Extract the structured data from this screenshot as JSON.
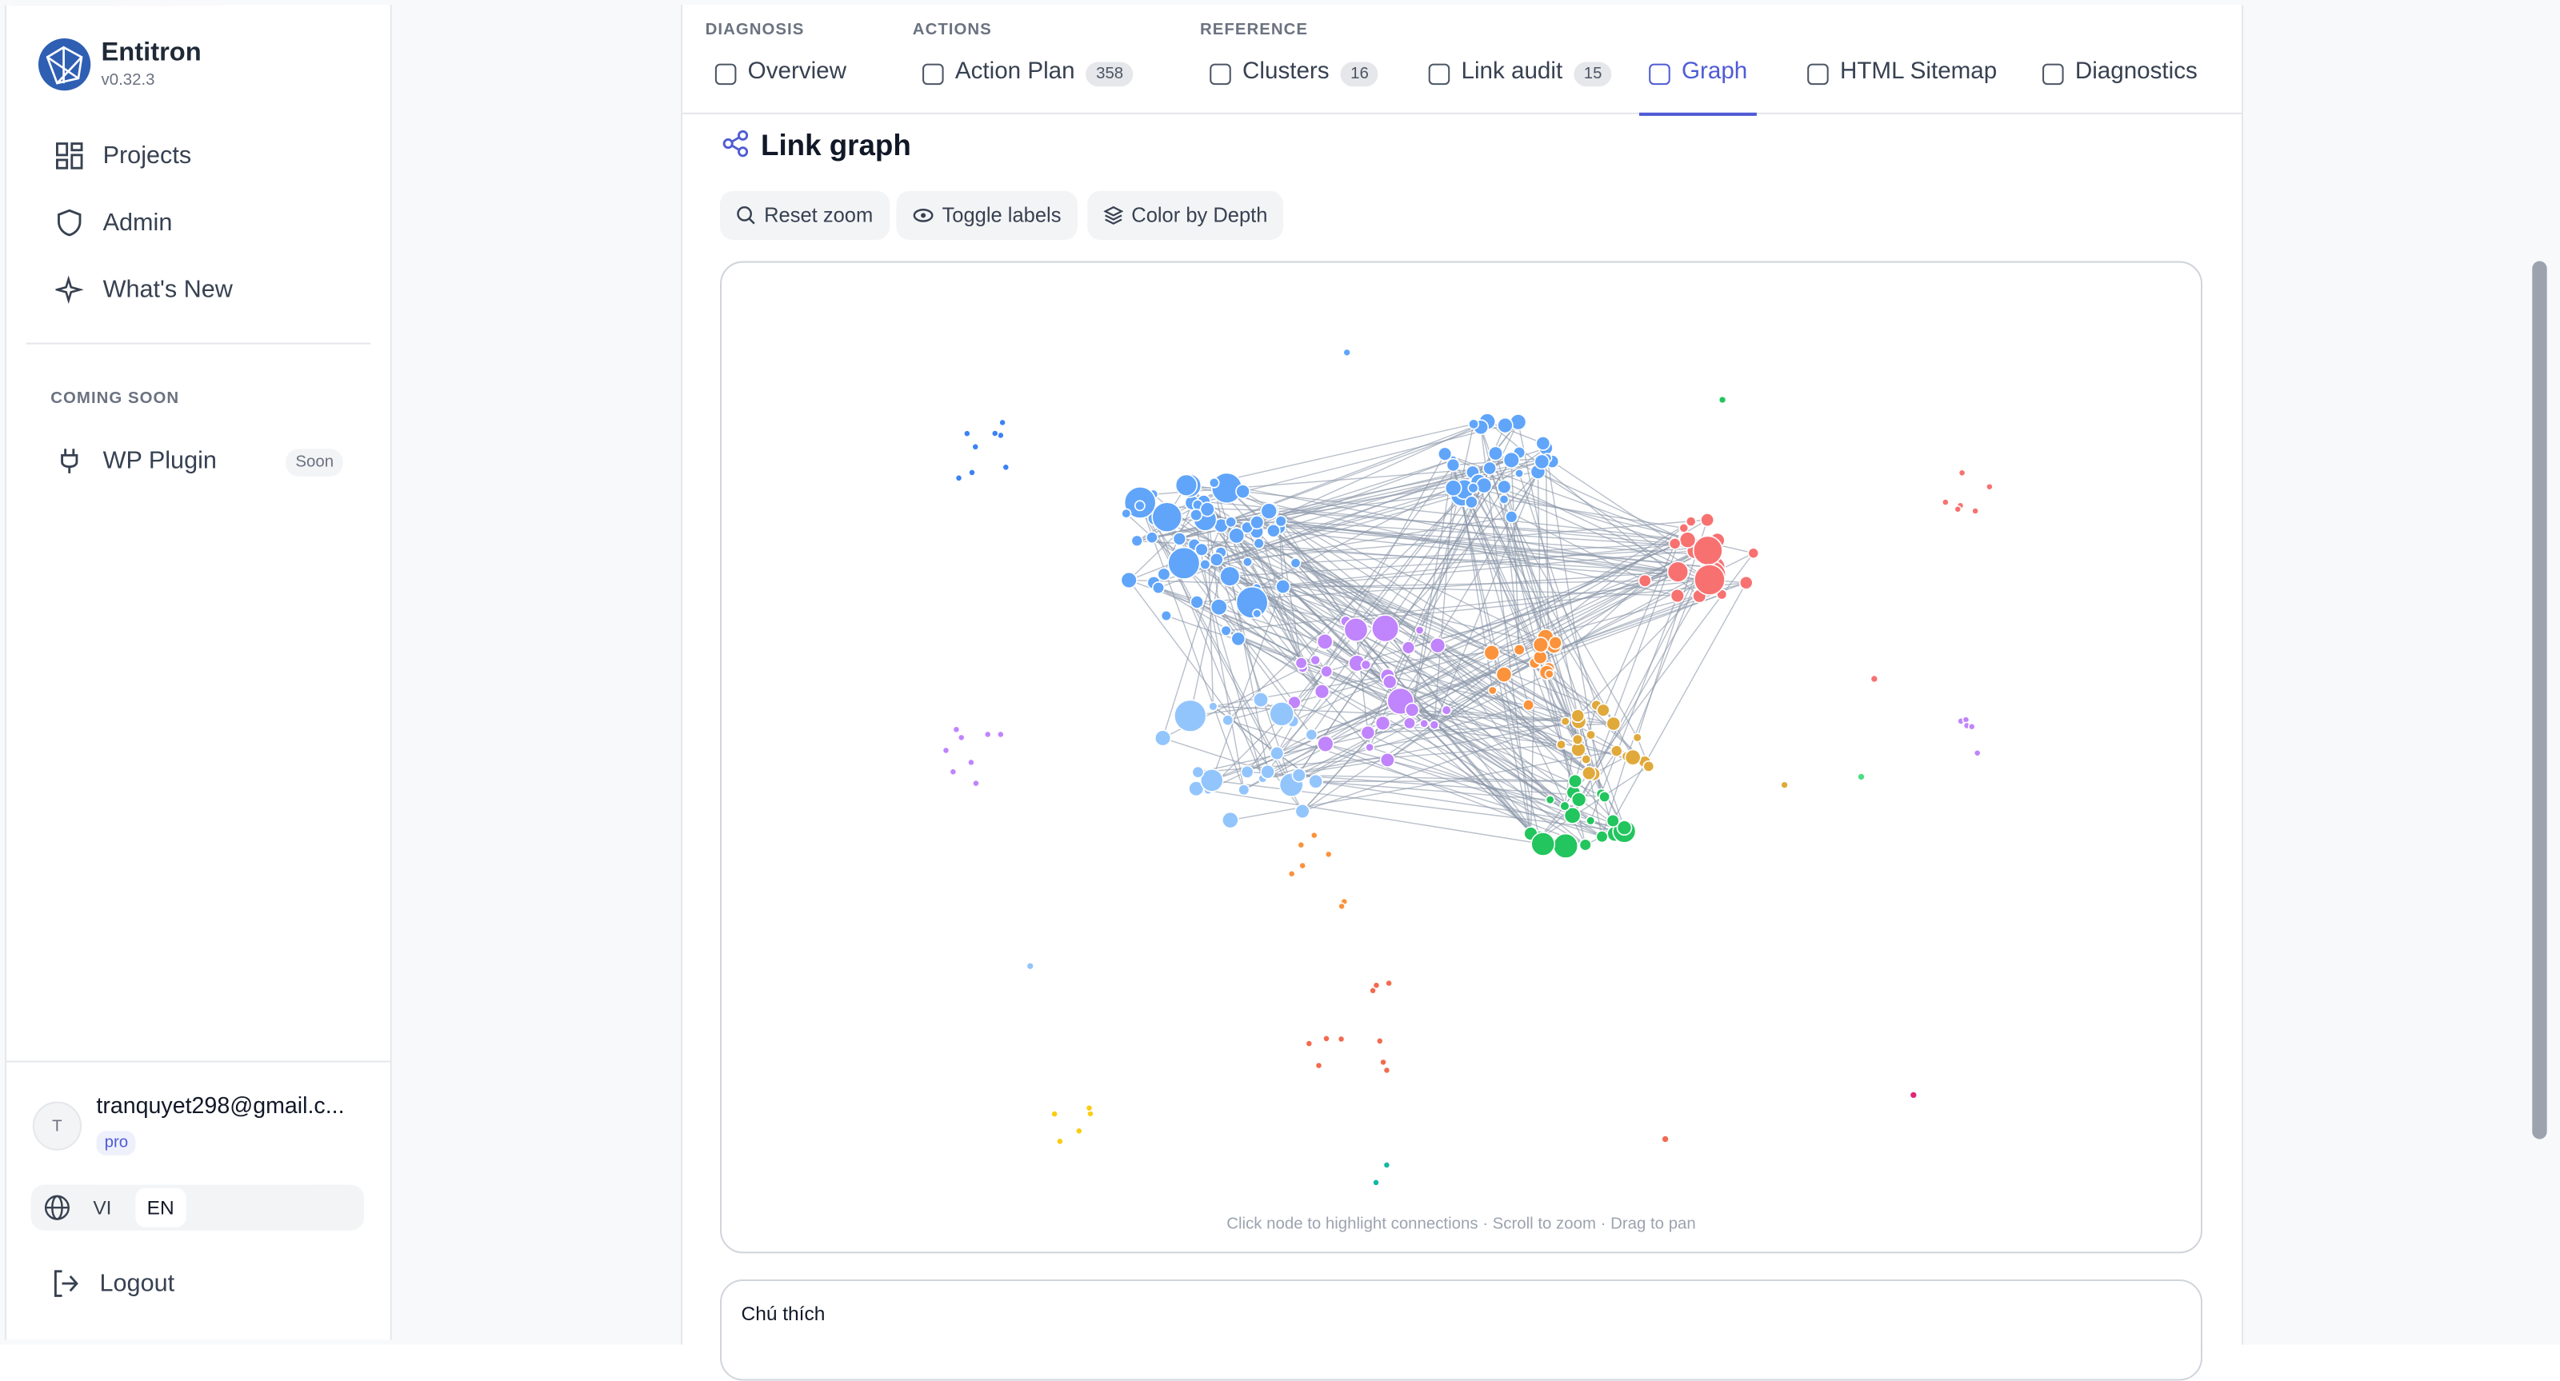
{
  "sidebar": {
    "app_name": "Entitron",
    "version": "v0.32.3",
    "nav": [
      "Projects",
      "Admin",
      "What's New"
    ],
    "coming_soon_heading": "COMING SOON",
    "coming_soon_items": [
      {
        "label": "WP Plugin",
        "badge": "Soon"
      }
    ],
    "user": {
      "avatar": "T",
      "email": "tranquyet298@gmail.c...",
      "plan": "pro"
    },
    "languages": [
      "VI",
      "EN"
    ],
    "logout": "Logout"
  },
  "tabs": {
    "groups": [
      {
        "label": "DIAGNOSIS",
        "items": [
          {
            "label": "Overview"
          }
        ]
      },
      {
        "label": "ACTIONS",
        "items": [
          {
            "label": "Action Plan",
            "count": 358
          }
        ]
      },
      {
        "label": "REFERENCE",
        "items": [
          {
            "label": "Clusters",
            "count": 16
          },
          {
            "label": "Link audit",
            "count": 15
          },
          {
            "label": "Graph",
            "active": true
          },
          {
            "label": "HTML Sitemap"
          },
          {
            "label": "Diagnostics"
          }
        ]
      }
    ]
  },
  "panel": {
    "title": "Link graph",
    "buttons": [
      "Reset zoom",
      "Toggle labels",
      "Color by Depth"
    ],
    "hint": "Click node to highlight connections · Scroll to zoom · Drag to pan",
    "legend_title": "Chú thích"
  }
}
